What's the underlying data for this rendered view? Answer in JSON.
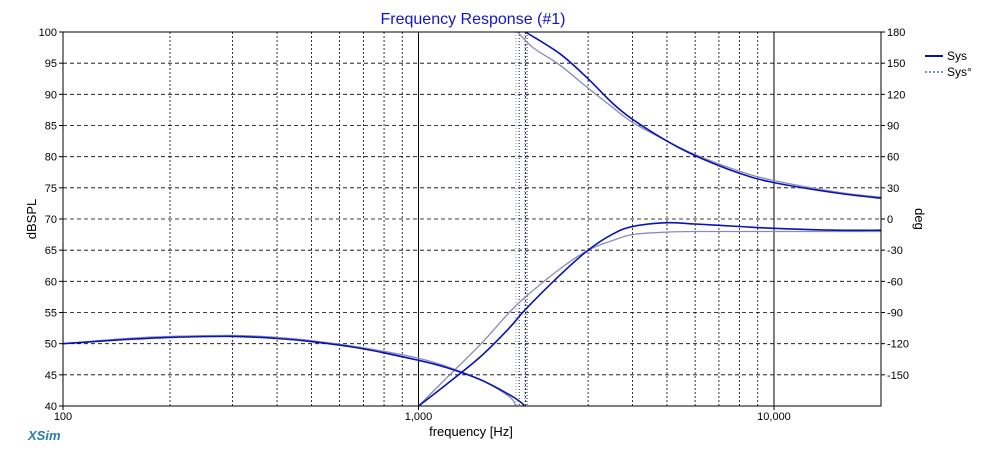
{
  "chart_data": {
    "type": "line",
    "title": "Frequency Response (#1)",
    "xlabel": "frequency [Hz]",
    "ylabel": "dBSPL",
    "y2label": "deg",
    "xscale": "log",
    "xlim": [
      100,
      20000
    ],
    "ylim": [
      40,
      100
    ],
    "y2lim": [
      -180,
      180
    ],
    "x_tick_labels": [
      "100",
      "1,000",
      "10,000"
    ],
    "y_ticks": [
      40,
      45,
      50,
      55,
      60,
      65,
      70,
      75,
      80,
      85,
      90,
      95,
      100
    ],
    "y2_ticks": [
      -150,
      -120,
      -90,
      -60,
      -30,
      0,
      30,
      60,
      90,
      120,
      150,
      180
    ],
    "grid": true,
    "legend_position": "top-right",
    "series": [
      {
        "name": "Sys",
        "axis": "left",
        "color": "#0a14b4",
        "style": "solid",
        "x": [
          1000,
          1200,
          1500,
          1800,
          2000,
          2500,
          3000,
          3500,
          4000,
          5000,
          6000,
          8000,
          10000,
          15000,
          20000
        ],
        "values": [
          40.0,
          43.5,
          48.0,
          52.5,
          55.5,
          61.0,
          65.0,
          67.5,
          68.8,
          69.4,
          69.2,
          68.8,
          68.5,
          68.2,
          68.2
        ]
      },
      {
        "name": "Sys",
        "axis": "right",
        "color": "#0a14b4",
        "style": "solid",
        "x": [
          100,
          150,
          200,
          300,
          400,
          500,
          700,
          1000,
          1200,
          1500,
          1800,
          1950,
          1980
        ],
        "values": [
          -120,
          -116,
          -114,
          -113,
          -115,
          -118,
          -125,
          -136,
          -143,
          -155,
          -169,
          -177,
          -180
        ]
      },
      {
        "name": "Sys",
        "axis": "right",
        "color": "#0a14b4",
        "style": "solid",
        "x": [
          2000,
          2500,
          3000,
          3500,
          4000,
          5000,
          6000,
          8000,
          10000,
          15000,
          20000
        ],
        "values": [
          180,
          159,
          135,
          112,
          96,
          75,
          61,
          44,
          35,
          25,
          20
        ]
      },
      {
        "name": "Sys°",
        "axis": "left",
        "color": "#8a8cb4",
        "style": "solid",
        "x": [
          1000,
          1200,
          1500,
          1800,
          2000,
          2500,
          3000,
          3500,
          4000,
          5000,
          6000,
          8000,
          10000,
          15000,
          20000
        ],
        "values": [
          40.0,
          44.5,
          50.0,
          55.0,
          57.5,
          62.0,
          65.0,
          66.5,
          67.5,
          67.9,
          68.0,
          68.0,
          68.0,
          68.0,
          68.0
        ]
      },
      {
        "name": "Sys°",
        "axis": "right",
        "color": "#8a8cb4",
        "style": "solid",
        "x": [
          100,
          150,
          200,
          300,
          400,
          500,
          700,
          1000,
          1200,
          1500,
          1800,
          1880
        ],
        "values": [
          -120,
          -115,
          -113,
          -112,
          -114,
          -117,
          -124,
          -134,
          -142,
          -155,
          -171,
          -180
        ]
      },
      {
        "name": "Sys°",
        "axis": "right",
        "color": "#8a8cb4",
        "style": "solid",
        "x": [
          1900,
          2100,
          2500,
          3000,
          3500,
          4000,
          5000,
          6000,
          8000,
          10000,
          15000,
          20000
        ],
        "values": [
          180,
          165,
          148,
          126,
          108,
          93,
          75,
          62,
          46,
          37,
          26,
          21
        ]
      }
    ],
    "vertical_markers": [
      {
        "x": 1880,
        "color": "#8a8cb4",
        "style": "dotted"
      },
      {
        "x": 1920,
        "color": "#0a14b4",
        "style": "dotted"
      },
      {
        "x": 1990,
        "color": "#8a8cb4",
        "style": "dotted"
      },
      {
        "x": 2020,
        "color": "#0a14b4",
        "style": "dotted"
      }
    ],
    "legend": [
      {
        "label": "Sys",
        "color": "#0a14b4",
        "style": "solid"
      },
      {
        "label": "Sys°",
        "color": "#0a14b4",
        "style": "dashed"
      }
    ]
  },
  "branding": {
    "app_name": "XSim"
  }
}
